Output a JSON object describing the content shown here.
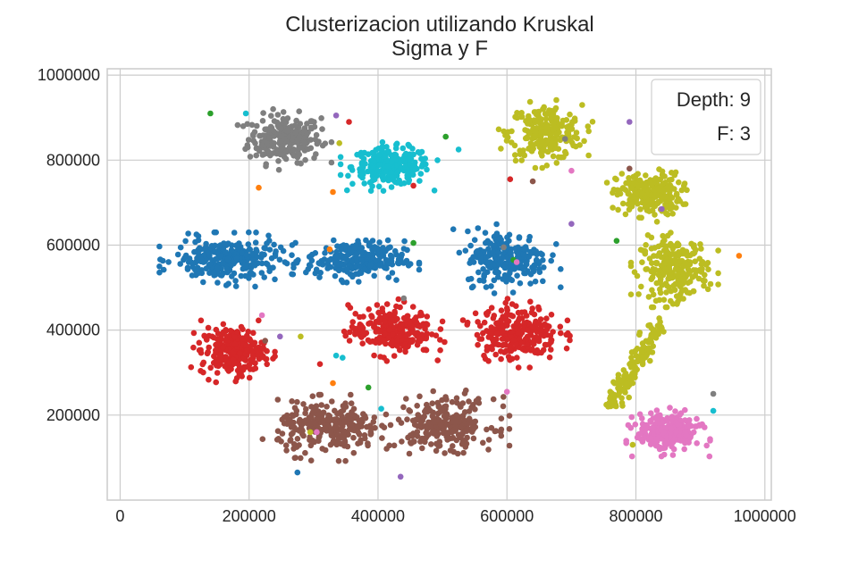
{
  "chart_data": {
    "type": "scatter",
    "title": "Clusterizacion utilizando Kruskal",
    "subtitle": "Sigma y F",
    "xlabel": "",
    "ylabel": "",
    "xlim": [
      -20000,
      1010000
    ],
    "ylim": [
      0,
      1015000
    ],
    "x_ticks": [
      0,
      200000,
      400000,
      600000,
      800000,
      1000000
    ],
    "y_ticks": [
      200000,
      400000,
      600000,
      800000,
      1000000
    ],
    "x_tick_labels": [
      "0",
      "200000",
      "400000",
      "600000",
      "800000",
      "1000000"
    ],
    "y_tick_labels": [
      "200000",
      "400000",
      "600000",
      "800000",
      "1000000"
    ],
    "grid": true,
    "legend": {
      "placement": "top-right",
      "lines": [
        "Depth: 9",
        "F: 3"
      ]
    },
    "palette": {
      "blue": "#1f77b4",
      "orange": "#ff7f0e",
      "green": "#2ca02c",
      "red": "#d62728",
      "purple": "#9467bd",
      "brown": "#8c564b",
      "pink": "#e377c2",
      "gray": "#7f7f7f",
      "olive": "#bcbd22",
      "cyan": "#17becf"
    },
    "clusters": [
      {
        "color": "gray",
        "center": [
          255000,
          850000
        ],
        "spread": [
          28000,
          28000
        ],
        "count": 240
      },
      {
        "color": "cyan",
        "center": [
          420000,
          785000
        ],
        "spread": [
          30000,
          22000
        ],
        "count": 240
      },
      {
        "color": "olive",
        "center": [
          660000,
          865000
        ],
        "spread": [
          28000,
          32000
        ],
        "count": 230
      },
      {
        "color": "olive",
        "center": [
          820000,
          720000
        ],
        "spread": [
          25000,
          25000
        ],
        "count": 230
      },
      {
        "color": "olive",
        "center": [
          860000,
          545000
        ],
        "spread": [
          26000,
          35000
        ],
        "count": 250
      },
      {
        "color": "blue",
        "center": [
          165000,
          565000
        ],
        "spread": [
          40000,
          25000
        ],
        "count": 260
      },
      {
        "color": "blue",
        "center": [
          365000,
          565000
        ],
        "spread": [
          38000,
          22000
        ],
        "count": 240
      },
      {
        "color": "blue",
        "center": [
          600000,
          570000
        ],
        "spread": [
          32000,
          32000
        ],
        "count": 240
      },
      {
        "color": "red",
        "center": [
          175000,
          350000
        ],
        "spread": [
          25000,
          28000
        ],
        "count": 240
      },
      {
        "color": "red",
        "center": [
          420000,
          400000
        ],
        "spread": [
          32000,
          28000
        ],
        "count": 240
      },
      {
        "color": "red",
        "center": [
          615000,
          395000
        ],
        "spread": [
          32000,
          32000
        ],
        "count": 250
      },
      {
        "color": "brown",
        "center": [
          325000,
          170000
        ],
        "spread": [
          40000,
          30000
        ],
        "count": 260
      },
      {
        "color": "brown",
        "center": [
          505000,
          180000
        ],
        "spread": [
          38000,
          30000
        ],
        "count": 240
      },
      {
        "color": "pink",
        "center": [
          850000,
          160000
        ],
        "spread": [
          25000,
          22000
        ],
        "count": 250
      },
      {
        "color": "olive",
        "line_from": [
          755000,
          210000
        ],
        "line_to": [
          835000,
          410000
        ],
        "jitter": 8000,
        "count": 140
      }
    ],
    "outliers": [
      {
        "x": 140000,
        "y": 910000,
        "color": "green"
      },
      {
        "x": 195000,
        "y": 910000,
        "color": "cyan"
      },
      {
        "x": 335000,
        "y": 905000,
        "color": "purple"
      },
      {
        "x": 355000,
        "y": 890000,
        "color": "red"
      },
      {
        "x": 340000,
        "y": 840000,
        "color": "olive"
      },
      {
        "x": 505000,
        "y": 855000,
        "color": "green"
      },
      {
        "x": 525000,
        "y": 825000,
        "color": "cyan"
      },
      {
        "x": 215000,
        "y": 735000,
        "color": "orange"
      },
      {
        "x": 330000,
        "y": 725000,
        "color": "orange"
      },
      {
        "x": 455000,
        "y": 740000,
        "color": "red"
      },
      {
        "x": 605000,
        "y": 755000,
        "color": "red"
      },
      {
        "x": 640000,
        "y": 750000,
        "color": "brown"
      },
      {
        "x": 700000,
        "y": 775000,
        "color": "pink"
      },
      {
        "x": 690000,
        "y": 850000,
        "color": "gray"
      },
      {
        "x": 790000,
        "y": 890000,
        "color": "purple"
      },
      {
        "x": 790000,
        "y": 780000,
        "color": "brown"
      },
      {
        "x": 840000,
        "y": 685000,
        "color": "purple"
      },
      {
        "x": 700000,
        "y": 650000,
        "color": "purple"
      },
      {
        "x": 770000,
        "y": 610000,
        "color": "green"
      },
      {
        "x": 960000,
        "y": 575000,
        "color": "orange"
      },
      {
        "x": 455000,
        "y": 605000,
        "color": "green"
      },
      {
        "x": 325000,
        "y": 590000,
        "color": "orange"
      },
      {
        "x": 610000,
        "y": 565000,
        "color": "green"
      },
      {
        "x": 615000,
        "y": 560000,
        "color": "pink"
      },
      {
        "x": 595000,
        "y": 595000,
        "color": "gray"
      },
      {
        "x": 440000,
        "y": 475000,
        "color": "gray"
      },
      {
        "x": 220000,
        "y": 435000,
        "color": "pink"
      },
      {
        "x": 225000,
        "y": 375000,
        "color": "brown"
      },
      {
        "x": 248000,
        "y": 385000,
        "color": "purple"
      },
      {
        "x": 280000,
        "y": 385000,
        "color": "olive"
      },
      {
        "x": 335000,
        "y": 340000,
        "color": "cyan"
      },
      {
        "x": 345000,
        "y": 335000,
        "color": "cyan"
      },
      {
        "x": 310000,
        "y": 320000,
        "color": "red"
      },
      {
        "x": 330000,
        "y": 275000,
        "color": "orange"
      },
      {
        "x": 385000,
        "y": 265000,
        "color": "green"
      },
      {
        "x": 405000,
        "y": 215000,
        "color": "cyan"
      },
      {
        "x": 600000,
        "y": 255000,
        "color": "pink"
      },
      {
        "x": 295000,
        "y": 160000,
        "color": "olive"
      },
      {
        "x": 305000,
        "y": 160000,
        "color": "pink"
      },
      {
        "x": 275000,
        "y": 65000,
        "color": "blue"
      },
      {
        "x": 435000,
        "y": 55000,
        "color": "purple"
      },
      {
        "x": 920000,
        "y": 250000,
        "color": "gray"
      },
      {
        "x": 920000,
        "y": 210000,
        "color": "cyan"
      },
      {
        "x": 795000,
        "y": 130000,
        "color": "olive"
      }
    ]
  }
}
